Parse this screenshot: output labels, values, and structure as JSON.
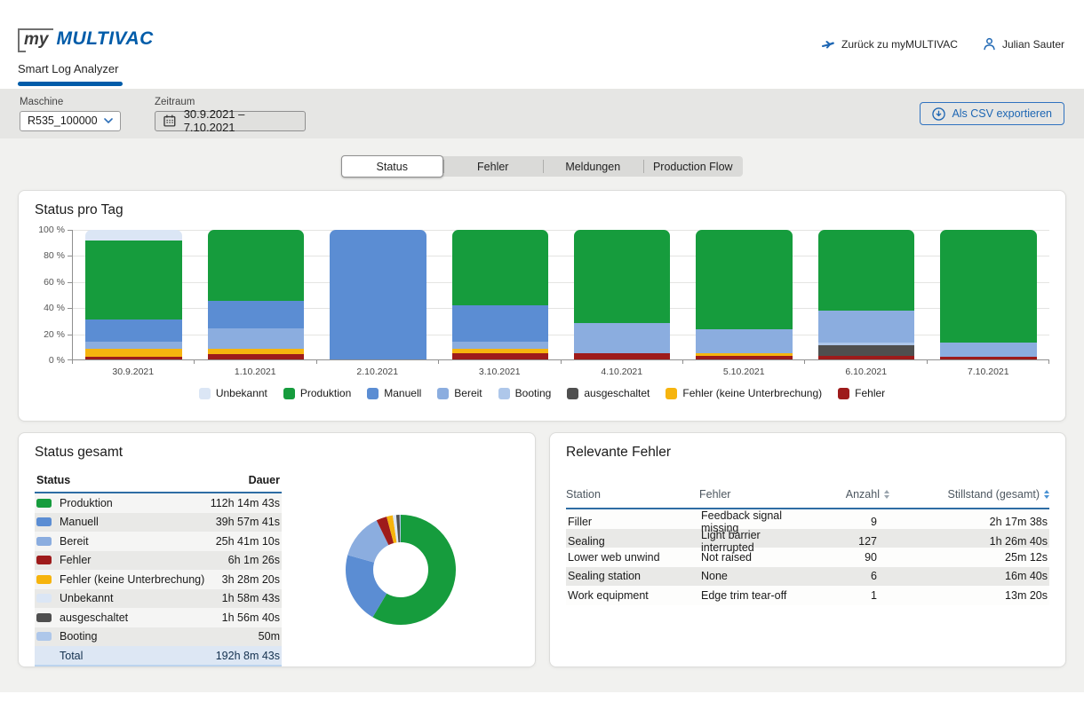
{
  "header": {
    "logo_my": "my",
    "logo_brand": "MULTIVAC",
    "app_tab": "Smart Log Analyzer",
    "back_link": "Zurück zu myMULTIVAC",
    "user": "Julian Sauter"
  },
  "filters": {
    "machine_label": "Maschine",
    "machine_value": "R535_100000",
    "period_label": "Zeitraum",
    "period_value": "30.9.2021 – 7.10.2021",
    "export_button": "Als CSV exportieren"
  },
  "view_tabs": {
    "items": [
      {
        "label": "Status",
        "active": true
      },
      {
        "label": "Fehler",
        "active": false
      },
      {
        "label": "Meldungen",
        "active": false
      },
      {
        "label": "Production Flow",
        "active": false
      }
    ]
  },
  "status_colors": {
    "unbekannt": "#dbe6f5",
    "produktion": "#169c3d",
    "manuell": "#5b8dd3",
    "bereit": "#8baddf",
    "booting": "#aec7ea",
    "ausgeschaltet": "#4f4f4f",
    "fehler_ku": "#f6b40e",
    "fehler": "#9e1b1b"
  },
  "chart_data": [
    {
      "id": "status-pro-tag",
      "type": "bar",
      "stacked": true,
      "title": "Status pro Tag",
      "categories": [
        "30.9.2021",
        "1.10.2021",
        "2.10.2021",
        "3.10.2021",
        "4.10.2021",
        "5.10.2021",
        "6.10.2021",
        "7.10.2021"
      ],
      "series": [
        {
          "name": "Fehler",
          "key": "fehler",
          "values": [
            2,
            4,
            0,
            5,
            5,
            3,
            3,
            2
          ]
        },
        {
          "name": "Fehler (keine Unterbrechung)",
          "key": "fehler_ku",
          "values": [
            6,
            4,
            0,
            3,
            0,
            2,
            0,
            0
          ]
        },
        {
          "name": "ausgeschaltet",
          "key": "ausgeschaltet",
          "values": [
            0,
            0,
            0,
            0,
            0,
            0,
            8,
            0
          ]
        },
        {
          "name": "Booting",
          "key": "booting",
          "values": [
            0,
            0,
            0,
            0,
            0,
            0,
            2,
            0
          ]
        },
        {
          "name": "Bereit",
          "key": "bereit",
          "values": [
            6,
            16,
            0,
            6,
            23,
            18,
            25,
            11
          ]
        },
        {
          "name": "Manuell",
          "key": "manuell",
          "values": [
            17,
            21,
            100,
            28,
            0,
            0,
            0,
            0
          ]
        },
        {
          "name": "Produktion",
          "key": "produktion",
          "values": [
            61,
            55,
            0,
            58,
            72,
            77,
            62,
            87
          ]
        },
        {
          "name": "Unbekannt",
          "key": "unbekannt",
          "values": [
            8,
            0,
            0,
            0,
            0,
            0,
            0,
            0
          ]
        }
      ],
      "y_ticks": [
        "0 %",
        "20 %",
        "40 %",
        "60 %",
        "80 %",
        "100 %"
      ],
      "ylim": [
        0,
        100
      ],
      "grid": true,
      "legend_position": "bottom",
      "legend": [
        {
          "label": "Unbekannt",
          "key": "unbekannt"
        },
        {
          "label": "Produktion",
          "key": "produktion"
        },
        {
          "label": "Manuell",
          "key": "manuell"
        },
        {
          "label": "Bereit",
          "key": "bereit"
        },
        {
          "label": "Booting",
          "key": "booting"
        },
        {
          "label": "ausgeschaltet",
          "key": "ausgeschaltet"
        },
        {
          "label": "Fehler (keine Unterbrechung)",
          "key": "fehler_ku"
        },
        {
          "label": "Fehler",
          "key": "fehler"
        }
      ]
    },
    {
      "id": "status-gesamt-donut",
      "type": "pie",
      "donut": true,
      "slices": [
        {
          "label": "Produktion",
          "key": "produktion",
          "pct": 58.4
        },
        {
          "label": "Manuell",
          "key": "manuell",
          "pct": 20.8
        },
        {
          "label": "Bereit",
          "key": "bereit",
          "pct": 13.4
        },
        {
          "label": "Fehler",
          "key": "fehler",
          "pct": 3.1
        },
        {
          "label": "Fehler (keine Unterbrechung)",
          "key": "fehler_ku",
          "pct": 1.8
        },
        {
          "label": "Unbekannt",
          "key": "unbekannt",
          "pct": 1.0
        },
        {
          "label": "ausgeschaltet",
          "key": "ausgeschaltet",
          "pct": 1.0
        },
        {
          "label": "Booting",
          "key": "booting",
          "pct": 0.5
        }
      ]
    }
  ],
  "status_gesamt": {
    "title": "Status gesamt",
    "columns": [
      "Status",
      "Dauer"
    ],
    "rows": [
      {
        "key": "produktion",
        "label": "Produktion",
        "value": "112h 14m 43s"
      },
      {
        "key": "manuell",
        "label": "Manuell",
        "value": "39h 57m 41s"
      },
      {
        "key": "bereit",
        "label": "Bereit",
        "value": "25h 41m 10s"
      },
      {
        "key": "fehler",
        "label": "Fehler",
        "value": "6h 1m 26s"
      },
      {
        "key": "fehler_ku",
        "label": "Fehler (keine Unterbrechung)",
        "value": "3h 28m 20s"
      },
      {
        "key": "unbekannt",
        "label": "Unbekannt",
        "value": "1h 58m 43s"
      },
      {
        "key": "ausgeschaltet",
        "label": "ausgeschaltet",
        "value": "1h 56m 40s"
      },
      {
        "key": "booting",
        "label": "Booting",
        "value": "50m"
      }
    ],
    "total_label": "Total",
    "total_value": "192h 8m 43s"
  },
  "relevante_fehler": {
    "title": "Relevante Fehler",
    "columns": [
      {
        "label": "Station",
        "sortable": false
      },
      {
        "label": "Fehler",
        "sortable": false
      },
      {
        "label": "Anzahl",
        "sortable": true,
        "sort_active": false
      },
      {
        "label": "Stillstand (gesamt)",
        "sortable": true,
        "sort_active": true
      }
    ],
    "rows": [
      {
        "station": "Filler",
        "fehler": "Feedback signal missing",
        "anzahl": "9",
        "stillstand": "2h 17m 38s"
      },
      {
        "station": "Sealing",
        "fehler": "Light barrier interrupted",
        "anzahl": "127",
        "stillstand": "1h 26m 40s"
      },
      {
        "station": "Lower web unwind",
        "fehler": "Not raised",
        "anzahl": "90",
        "stillstand": "25m 12s"
      },
      {
        "station": "Sealing station",
        "fehler": "None",
        "anzahl": "6",
        "stillstand": "16m 40s"
      },
      {
        "station": "Work equipment",
        "fehler": "Edge trim tear-off",
        "anzahl": "1",
        "stillstand": "13m 20s"
      }
    ]
  }
}
